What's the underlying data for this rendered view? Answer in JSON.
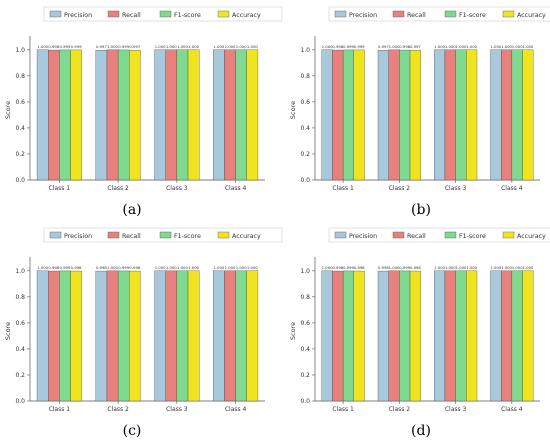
{
  "figure": {
    "panel_labels": [
      "(a)",
      "(b)",
      "(c)",
      "(d)"
    ]
  },
  "colors": {
    "Precision": "#a8c8dc",
    "Recall": "#e8807e",
    "F1-score": "#7fd98f",
    "Accuracy": "#f0e420"
  },
  "chart_data": [
    {
      "type": "bar",
      "label": "(a)",
      "categories": [
        "Class 1",
        "Class 2",
        "Class 3",
        "Class 4"
      ],
      "ylabel": "Score",
      "ylim": [
        0,
        1.0
      ],
      "yticks": [
        "0.0",
        "0.2",
        "0.4",
        "0.6",
        "0.8",
        "1.0"
      ],
      "legend": "top",
      "series": [
        {
          "name": "Precision",
          "values": [
            1.0,
            0.997,
            1.0,
            1.0
          ]
        },
        {
          "name": "Recall",
          "values": [
            0.998,
            1.0,
            1.0,
            1.0
          ]
        },
        {
          "name": "F1-score",
          "values": [
            0.999,
            0.999,
            1.0,
            1.0
          ]
        },
        {
          "name": "Accuracy",
          "values": [
            0.999,
            0.997,
            1.0,
            1.0
          ]
        }
      ],
      "data_labels": [
        [
          "1.000",
          "0.998",
          "0.999",
          "0.999"
        ],
        [
          "0.997",
          "1.000",
          "0.999",
          "0.997"
        ],
        [
          "1.000",
          "1.000",
          "1.000",
          "1.000"
        ],
        [
          "1.000",
          "1.000",
          "1.000",
          "1.000"
        ]
      ]
    },
    {
      "type": "bar",
      "label": "(b)",
      "categories": [
        "Class 1",
        "Class 2",
        "Class 3",
        "Class 4"
      ],
      "ylabel": "Score",
      "ylim": [
        0,
        1.0
      ],
      "yticks": [
        "0.0",
        "0.2",
        "0.4",
        "0.6",
        "0.8",
        "1.0"
      ],
      "legend": "top",
      "series": [
        {
          "name": "Precision",
          "values": [
            1.0,
            0.997,
            1.0,
            1.0
          ]
        },
        {
          "name": "Recall",
          "values": [
            0.998,
            1.0,
            1.0,
            1.0
          ]
        },
        {
          "name": "F1-score",
          "values": [
            0.999,
            0.998,
            1.0,
            1.0
          ]
        },
        {
          "name": "Accuracy",
          "values": [
            0.999,
            0.997,
            1.0,
            1.0
          ]
        }
      ],
      "data_labels": [
        [
          "1.000",
          "0.998",
          "0.999",
          "0.999"
        ],
        [
          "0.997",
          "1.000",
          "0.998",
          "0.997"
        ],
        [
          "1.000",
          "1.000",
          "1.000",
          "1.000"
        ],
        [
          "1.000",
          "1.000",
          "1.000",
          "1.000"
        ]
      ]
    },
    {
      "type": "bar",
      "label": "(c)",
      "categories": [
        "Class 1",
        "Class 2",
        "Class 3",
        "Class 4"
      ],
      "ylabel": "Score",
      "ylim": [
        0,
        1.0
      ],
      "yticks": [
        "0.0",
        "0.2",
        "0.4",
        "0.6",
        "0.8",
        "1.0"
      ],
      "legend": "top",
      "series": [
        {
          "name": "Precision",
          "values": [
            1.0,
            0.998,
            1.0,
            1.0
          ]
        },
        {
          "name": "Recall",
          "values": [
            0.998,
            1.0,
            1.0,
            1.0
          ]
        },
        {
          "name": "F1-score",
          "values": [
            0.999,
            0.999,
            1.0,
            1.0
          ]
        },
        {
          "name": "Accuracy",
          "values": [
            0.998,
            0.998,
            1.0,
            1.0
          ]
        }
      ],
      "data_labels": [
        [
          "1.000",
          "0.998",
          "0.999",
          "0.998"
        ],
        [
          "0.998",
          "1.000",
          "0.999",
          "0.998"
        ],
        [
          "1.000",
          "1.000",
          "1.000",
          "1.000"
        ],
        [
          "1.000",
          "1.000",
          "1.000",
          "1.000"
        ]
      ]
    },
    {
      "type": "bar",
      "label": "(d)",
      "categories": [
        "Class 1",
        "Class 2",
        "Class 3",
        "Class 4"
      ],
      "ylabel": "Score",
      "ylim": [
        0,
        1.0
      ],
      "yticks": [
        "0.0",
        "0.2",
        "0.4",
        "0.6",
        "0.8",
        "1.0"
      ],
      "legend": "top",
      "series": [
        {
          "name": "Precision",
          "values": [
            1.0,
            0.998,
            1.0,
            1.0
          ]
        },
        {
          "name": "Recall",
          "values": [
            0.998,
            1.0,
            1.0,
            1.0
          ]
        },
        {
          "name": "F1-score",
          "values": [
            0.999,
            0.999,
            1.0,
            1.0
          ]
        },
        {
          "name": "Accuracy",
          "values": [
            0.998,
            0.998,
            1.0,
            1.0
          ]
        }
      ],
      "data_labels": [
        [
          "1.000",
          "0.998",
          "0.999",
          "0.998"
        ],
        [
          "0.998",
          "1.000",
          "0.999",
          "0.998"
        ],
        [
          "1.000",
          "1.000",
          "1.000",
          "1.000"
        ],
        [
          "1.000",
          "1.000",
          "1.000",
          "1.000"
        ]
      ]
    }
  ]
}
